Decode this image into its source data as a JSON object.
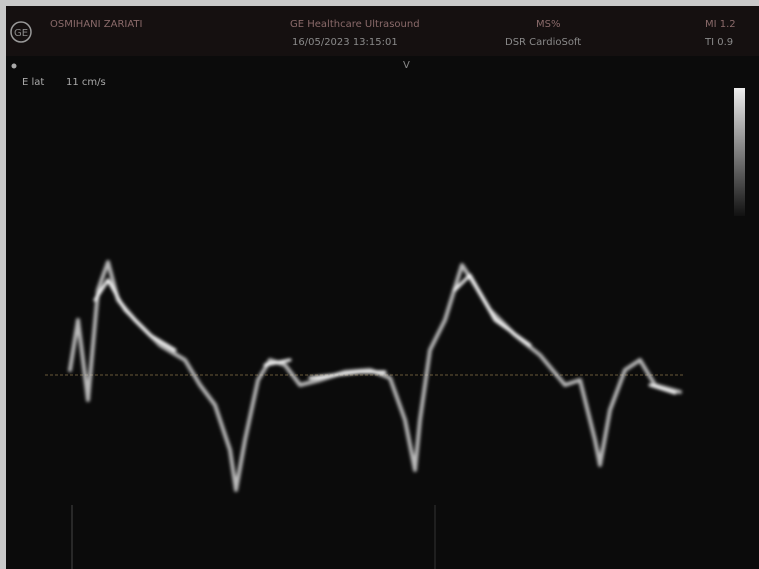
{
  "logo": "GE",
  "header": {
    "patient": "OSMIHANI ZARIATI",
    "system": "GE Healthcare Ultrasound",
    "datetime": "16/05/2023 13:15:01",
    "mode": "MS%",
    "preset": "DSR CardioSoft",
    "mi": "MI 1.2",
    "ti": "TI 0.9"
  },
  "labels": {
    "marker": "V",
    "measurement_name": "E lat",
    "measurement_value": "11 cm/s"
  }
}
